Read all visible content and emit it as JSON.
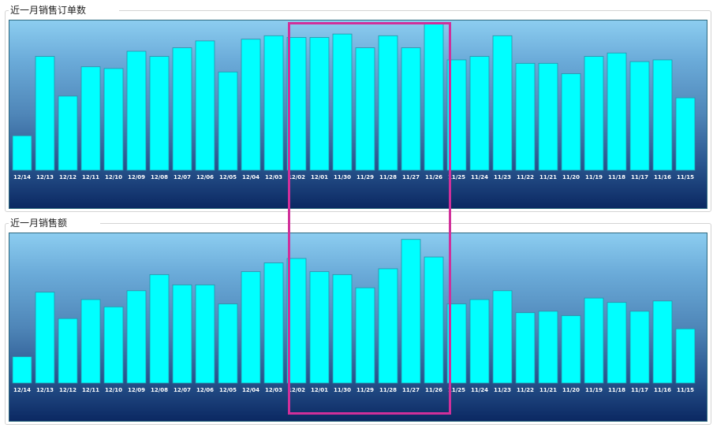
{
  "panels": [
    {
      "title": "近一月销售订单数"
    },
    {
      "title": "近一月销售额"
    }
  ],
  "colors": {
    "bar": "#00ffff",
    "bar_stroke": "#2a8fa8",
    "highlight": "#d12f9a",
    "label": "#ffffff"
  },
  "chart_data": [
    {
      "type": "bar",
      "title": "近一月销售订单数",
      "categories": [
        "12/14",
        "12/13",
        "12/12",
        "12/11",
        "12/10",
        "12/09",
        "12/08",
        "12/07",
        "12/06",
        "12/05",
        "12/04",
        "12/03",
        "12/02",
        "12/01",
        "11/30",
        "11/29",
        "11/28",
        "11/27",
        "11/26",
        "11/25",
        "11/24",
        "11/23",
        "11/22",
        "11/21",
        "11/20",
        "11/19",
        "11/18",
        "11/17",
        "11/16",
        "11/15"
      ],
      "values": [
        20,
        66,
        43,
        60,
        59,
        69,
        66,
        71,
        75,
        57,
        76,
        78,
        77,
        77,
        79,
        71,
        78,
        71,
        85,
        64,
        66,
        78,
        62,
        62,
        56,
        66,
        68,
        63,
        64,
        42
      ],
      "ylim": [
        0,
        85
      ],
      "grid": false,
      "legend": "none"
    },
    {
      "type": "bar",
      "title": "近一月销售额",
      "categories": [
        "12/14",
        "12/13",
        "12/12",
        "12/11",
        "12/10",
        "12/09",
        "12/08",
        "12/07",
        "12/06",
        "12/05",
        "12/04",
        "12/03",
        "12/02",
        "12/01",
        "11/30",
        "11/29",
        "11/28",
        "11/27",
        "11/26",
        "11/25",
        "11/24",
        "11/23",
        "11/22",
        "11/21",
        "11/20",
        "11/19",
        "11/18",
        "11/17",
        "11/16",
        "11/15"
      ],
      "values": [
        18,
        62,
        44,
        57,
        52,
        63,
        74,
        67,
        67,
        54,
        76,
        82,
        85,
        76,
        74,
        65,
        78,
        98,
        86,
        54,
        57,
        63,
        48,
        49,
        46,
        58,
        55,
        49,
        56,
        37
      ],
      "ylim": [
        0,
        100
      ],
      "grid": false,
      "legend": "none"
    }
  ]
}
